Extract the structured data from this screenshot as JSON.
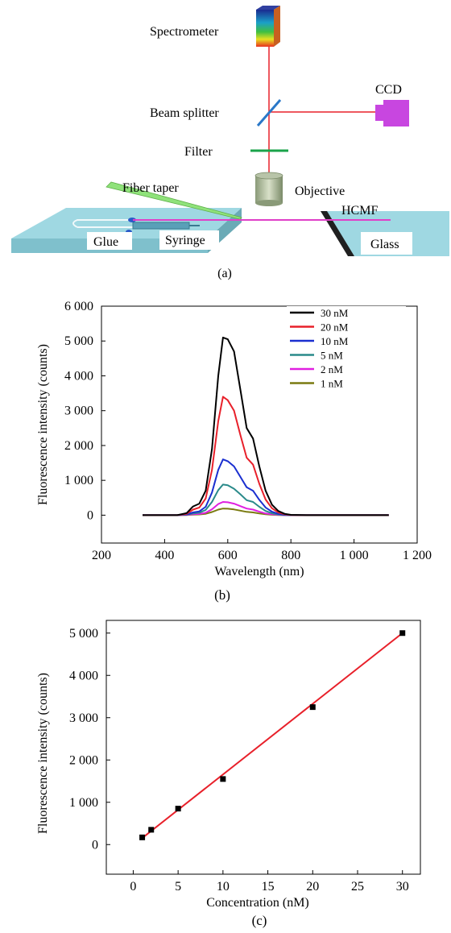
{
  "figure": {
    "panel_a": {
      "caption": "(a)",
      "labels": {
        "spectrometer": "Spectrometer",
        "ccd": "CCD",
        "beam_splitter": "Beam splitter",
        "filter": "Filter",
        "fiber_taper": "Fiber taper",
        "objective": "Objective",
        "hcmf": "HCMF",
        "glue": "Glue",
        "syringe": "Syringe",
        "glass": "Glass"
      },
      "colors": {
        "laser": "#e8202a",
        "platform": "#9fd8e2",
        "ccd": "#c846e0",
        "filter": "#1aa34a",
        "splitter": "#2a78c8",
        "fiber_taper": "#8fe27a",
        "fiber": "#e040c8"
      }
    },
    "panel_b": {
      "caption": "(b)"
    },
    "panel_c": {
      "caption": "(c)"
    }
  },
  "chart_data": [
    {
      "type": "line",
      "xlabel": "Wavelength (nm)",
      "ylabel": "Fluorescence intensity (counts)",
      "xlim": [
        200,
        1200
      ],
      "ylim": [
        -800,
        6000
      ],
      "x_ticks": [
        200,
        400,
        600,
        800,
        1000,
        1200
      ],
      "x_tick_labels": [
        "200",
        "400",
        "600",
        "800",
        "1 000",
        "1 200"
      ],
      "y_ticks": [
        0,
        1000,
        2000,
        3000,
        4000,
        5000,
        6000
      ],
      "y_tick_labels": [
        "0",
        "1 000",
        "2 000",
        "3 000",
        "4 000",
        "5 000",
        "6 000"
      ],
      "legend_position": "top-right",
      "x": [
        330,
        400,
        440,
        470,
        490,
        510,
        530,
        550,
        570,
        585,
        600,
        620,
        640,
        660,
        680,
        700,
        720,
        740,
        760,
        780,
        800,
        850,
        900,
        1000,
        1110
      ],
      "series": [
        {
          "name": "30 nM",
          "color": "#000000",
          "values": [
            0,
            0,
            0,
            60,
            250,
            330,
            700,
            1900,
            4000,
            5100,
            5050,
            4700,
            3600,
            2500,
            2200,
            1400,
            700,
            300,
            120,
            40,
            10,
            0,
            0,
            0,
            0
          ]
        },
        {
          "name": "20 nM",
          "color": "#e8202a",
          "values": [
            0,
            0,
            0,
            40,
            160,
            220,
            480,
            1300,
            2700,
            3400,
            3300,
            3000,
            2300,
            1650,
            1450,
            900,
            450,
            200,
            80,
            25,
            5,
            0,
            0,
            0,
            0
          ]
        },
        {
          "name": "10 nM",
          "color": "#1a2fd0",
          "values": [
            0,
            0,
            0,
            20,
            80,
            110,
            240,
            650,
            1300,
            1600,
            1550,
            1400,
            1100,
            800,
            700,
            440,
            220,
            100,
            40,
            10,
            0,
            0,
            0,
            0,
            0
          ]
        },
        {
          "name": "5 nM",
          "color": "#2a8a8a",
          "values": [
            0,
            0,
            0,
            15,
            50,
            70,
            150,
            380,
            720,
            880,
            860,
            760,
            600,
            430,
            380,
            240,
            120,
            55,
            20,
            5,
            0,
            0,
            0,
            0,
            0
          ]
        },
        {
          "name": "2 nM",
          "color": "#e020e0",
          "values": [
            0,
            0,
            0,
            10,
            25,
            35,
            70,
            170,
            320,
            380,
            370,
            330,
            260,
            190,
            160,
            100,
            50,
            25,
            10,
            0,
            0,
            0,
            0,
            0,
            0
          ]
        },
        {
          "name": "1 nM",
          "color": "#7a7a10",
          "values": [
            0,
            0,
            0,
            5,
            15,
            20,
            40,
            90,
            160,
            190,
            185,
            165,
            130,
            95,
            80,
            50,
            25,
            12,
            5,
            0,
            0,
            0,
            0,
            0,
            0
          ]
        }
      ]
    },
    {
      "type": "scatter",
      "xlabel": "Concentration (nM)",
      "ylabel": "Fluorescence intensity (counts)",
      "xlim": [
        -3,
        32
      ],
      "ylim": [
        -700,
        5300
      ],
      "x_ticks": [
        0,
        5,
        10,
        15,
        20,
        25,
        30
      ],
      "x_tick_labels": [
        "0",
        "5",
        "10",
        "15",
        "20",
        "25",
        "30"
      ],
      "y_ticks": [
        0,
        1000,
        2000,
        3000,
        4000,
        5000
      ],
      "y_tick_labels": [
        "0",
        "1 000",
        "2 000",
        "3 000",
        "4 000",
        "5 000"
      ],
      "points": {
        "x": [
          1,
          2,
          5,
          10,
          20,
          30
        ],
        "y": [
          170,
          350,
          850,
          1550,
          3250,
          5000
        ]
      },
      "fit_line": {
        "x": [
          0.8,
          30
        ],
        "y": [
          120,
          5000
        ],
        "color": "#e8202a"
      }
    }
  ]
}
